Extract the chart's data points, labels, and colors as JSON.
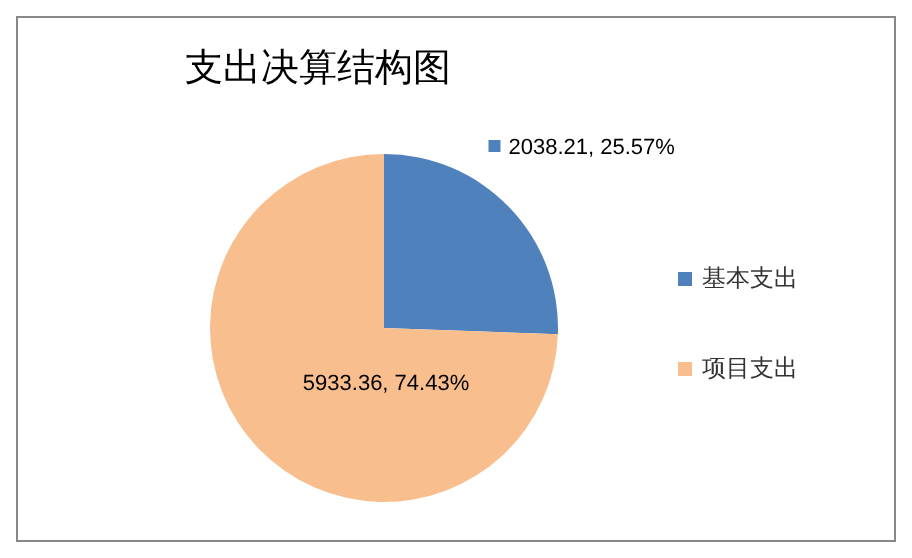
{
  "chart_data": {
    "type": "pie",
    "title": "支出决算结构图",
    "categories": [
      "基本支出",
      "项目支出"
    ],
    "values": [
      2038.21,
      5933.36
    ],
    "colors": [
      "#4f81bd",
      "#f9be8e"
    ],
    "value_labels": [
      "2038.21, 25.57%",
      "5933.36, 74.43%"
    ],
    "legend": "right"
  }
}
